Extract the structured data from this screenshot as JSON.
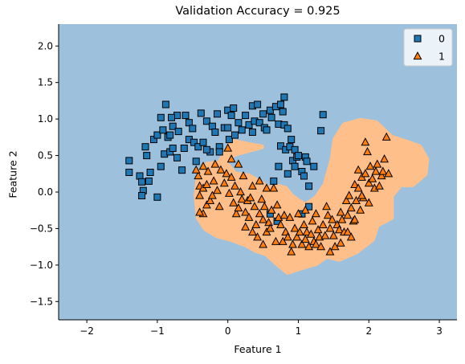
{
  "chart_data": {
    "type": "scatter",
    "title": "Validation Accuracy = 0.925",
    "xlabel": "Feature 1",
    "ylabel": "Feature 2",
    "xlim": [
      -2.4,
      3.25
    ],
    "ylim": [
      -1.75,
      2.3
    ],
    "xticks": [
      "-2",
      "-1",
      "0",
      "1",
      "2",
      "3"
    ],
    "yticks": [
      "-1.5",
      "-1.0",
      "-0.5",
      "0.0",
      "0.5",
      "1.0",
      "1.5",
      "2.0"
    ],
    "grid": false,
    "legend_position": "top-right",
    "background_region_color": "#9dc1dc",
    "class1_region_color": "#ffbf8a",
    "series": [
      {
        "name": "0",
        "marker": "square",
        "color": "#1f77b4",
        "points": [
          [
            -1.4,
            0.43
          ],
          [
            -1.4,
            0.27
          ],
          [
            -1.25,
            0.22
          ],
          [
            -1.22,
            0.14
          ],
          [
            -1.2,
            0.02
          ],
          [
            -1.22,
            -0.05
          ],
          [
            -1.12,
            0.15
          ],
          [
            -1.1,
            0.27
          ],
          [
            -1.15,
            0.5
          ],
          [
            -1.17,
            0.62
          ],
          [
            -1.0,
            -0.07
          ],
          [
            -0.95,
            0.35
          ],
          [
            -0.9,
            0.52
          ],
          [
            -0.82,
            0.55
          ],
          [
            -0.85,
            0.75
          ],
          [
            -0.82,
            0.78
          ],
          [
            -0.78,
            0.6
          ],
          [
            -0.72,
            0.47
          ],
          [
            -0.78,
            0.9
          ],
          [
            -0.72,
            1.05
          ],
          [
            -0.65,
            0.3
          ],
          [
            -0.6,
            1.05
          ],
          [
            -0.55,
            0.95
          ],
          [
            -0.5,
            0.87
          ],
          [
            -0.55,
            0.72
          ],
          [
            -0.48,
            0.68
          ],
          [
            -0.45,
            0.42
          ],
          [
            -0.42,
            0.62
          ],
          [
            -0.38,
            1.08
          ],
          [
            -0.3,
            0.97
          ],
          [
            -0.25,
            0.55
          ],
          [
            -0.22,
            0.9
          ],
          [
            -0.15,
            1.07
          ],
          [
            -0.12,
            0.62
          ],
          [
            -0.12,
            0.55
          ],
          [
            -1.05,
            0.72
          ],
          [
            -0.95,
            1.02
          ],
          [
            -0.88,
            1.2
          ],
          [
            -0.8,
            1.02
          ],
          [
            -1.0,
            0.78
          ],
          [
            -0.92,
            0.85
          ],
          [
            -0.7,
            0.83
          ],
          [
            -0.62,
            0.6
          ],
          [
            -0.35,
            0.68
          ],
          [
            -0.3,
            0.58
          ],
          [
            -0.18,
            0.82
          ],
          [
            -0.05,
            0.88
          ],
          [
            0.0,
            1.12
          ],
          [
            0.05,
            1.05
          ],
          [
            0.08,
            1.15
          ],
          [
            0.0,
            0.88
          ],
          [
            0.02,
            0.72
          ],
          [
            0.1,
            0.78
          ],
          [
            0.15,
            0.95
          ],
          [
            0.2,
            0.85
          ],
          [
            0.25,
            1.05
          ],
          [
            0.3,
            0.92
          ],
          [
            0.35,
            0.82
          ],
          [
            0.35,
            1.18
          ],
          [
            0.38,
            0.97
          ],
          [
            0.42,
            1.2
          ],
          [
            0.45,
            0.95
          ],
          [
            0.5,
            1.07
          ],
          [
            0.52,
            0.88
          ],
          [
            0.55,
            0.85
          ],
          [
            0.6,
            1.12
          ],
          [
            0.62,
            1.02
          ],
          [
            0.68,
            1.17
          ],
          [
            0.72,
            0.93
          ],
          [
            0.75,
            1.2
          ],
          [
            0.78,
            1.1
          ],
          [
            0.8,
            0.92
          ],
          [
            0.8,
            1.3
          ],
          [
            0.75,
            0.63
          ],
          [
            0.82,
            0.58
          ],
          [
            0.85,
            0.87
          ],
          [
            0.88,
            0.62
          ],
          [
            0.9,
            0.72
          ],
          [
            0.92,
            0.43
          ],
          [
            0.95,
            0.58
          ],
          [
            0.95,
            0.35
          ],
          [
            0.98,
            0.48
          ],
          [
            1.05,
            0.28
          ],
          [
            1.08,
            0.22
          ],
          [
            1.1,
            0.48
          ],
          [
            1.15,
            0.08
          ],
          [
            1.12,
            0.42
          ],
          [
            1.22,
            0.35
          ],
          [
            1.32,
            0.84
          ],
          [
            1.35,
            1.06
          ],
          [
            1.0,
            0.5
          ],
          [
            0.85,
            0.25
          ],
          [
            0.72,
            0.35
          ],
          [
            0.65,
            0.15
          ],
          [
            1.05,
            -0.3
          ],
          [
            1.15,
            -0.2
          ],
          [
            0.6,
            -0.3
          ],
          [
            0.7,
            -0.4
          ]
        ]
      },
      {
        "name": "1",
        "marker": "triangle",
        "color": "#ff7f0e",
        "points": [
          [
            -0.4,
            -0.05
          ],
          [
            -0.35,
            -0.3
          ],
          [
            -0.4,
            -0.28
          ],
          [
            -0.3,
            -0.18
          ],
          [
            -0.25,
            -0.12
          ],
          [
            -0.28,
            0.28
          ],
          [
            -0.35,
            0.35
          ],
          [
            -0.4,
            0.08
          ],
          [
            -0.42,
            0.22
          ],
          [
            -0.35,
            0.05
          ],
          [
            -0.22,
            -0.05
          ],
          [
            -0.2,
            0.15
          ],
          [
            -0.18,
            0.38
          ],
          [
            -0.15,
            0.02
          ],
          [
            -0.12,
            -0.2
          ],
          [
            -0.1,
            0.3
          ],
          [
            -0.05,
            0.12
          ],
          [
            -0.02,
            0.25
          ],
          [
            0.0,
            0.6
          ],
          [
            0.02,
            -0.02
          ],
          [
            0.05,
            0.2
          ],
          [
            0.08,
            -0.15
          ],
          [
            0.1,
            0.08
          ],
          [
            0.12,
            -0.3
          ],
          [
            0.15,
            -0.22
          ],
          [
            0.18,
            0.0
          ],
          [
            0.2,
            -0.1
          ],
          [
            0.22,
            0.22
          ],
          [
            0.25,
            -0.28
          ],
          [
            0.28,
            -0.12
          ],
          [
            0.3,
            -0.35
          ],
          [
            0.32,
            -0.08
          ],
          [
            0.35,
            0.08
          ],
          [
            0.38,
            -0.2
          ],
          [
            0.4,
            -0.45
          ],
          [
            0.42,
            -0.62
          ],
          [
            0.45,
            -0.3
          ],
          [
            0.48,
            -0.1
          ],
          [
            0.5,
            -0.38
          ],
          [
            0.52,
            -0.2
          ],
          [
            0.55,
            -0.55
          ],
          [
            0.58,
            -0.42
          ],
          [
            0.6,
            -0.5
          ],
          [
            0.62,
            -0.25
          ],
          [
            0.65,
            0.05
          ],
          [
            0.68,
            -0.68
          ],
          [
            0.7,
            -0.18
          ],
          [
            0.72,
            -0.35
          ],
          [
            0.75,
            -0.45
          ],
          [
            0.78,
            -0.68
          ],
          [
            0.8,
            -0.32
          ],
          [
            0.82,
            -0.55
          ],
          [
            0.85,
            -0.62
          ],
          [
            0.88,
            -0.35
          ],
          [
            0.9,
            -0.82
          ],
          [
            0.92,
            -0.72
          ],
          [
            0.95,
            -0.5
          ],
          [
            0.98,
            -0.62
          ],
          [
            1.0,
            -0.3
          ],
          [
            1.02,
            -0.55
          ],
          [
            1.05,
            -0.72
          ],
          [
            1.08,
            -0.45
          ],
          [
            1.1,
            -0.65
          ],
          [
            1.12,
            -0.55
          ],
          [
            1.15,
            -0.75
          ],
          [
            1.18,
            -0.58
          ],
          [
            1.2,
            -0.4
          ],
          [
            1.22,
            -0.68
          ],
          [
            1.25,
            -0.72
          ],
          [
            1.28,
            -0.52
          ],
          [
            1.3,
            -0.62
          ],
          [
            1.32,
            -0.75
          ],
          [
            1.35,
            -0.45
          ],
          [
            1.38,
            -0.6
          ],
          [
            1.4,
            -0.2
          ],
          [
            1.42,
            -0.32
          ],
          [
            1.45,
            -0.5
          ],
          [
            1.48,
            -0.38
          ],
          [
            1.5,
            -0.6
          ],
          [
            1.52,
            -0.75
          ],
          [
            1.55,
            -0.45
          ],
          [
            1.58,
            -0.52
          ],
          [
            1.6,
            -0.28
          ],
          [
            1.62,
            -0.38
          ],
          [
            1.65,
            -0.55
          ],
          [
            1.68,
            -0.12
          ],
          [
            1.7,
            -0.32
          ],
          [
            1.72,
            -0.05
          ],
          [
            1.75,
            -0.22
          ],
          [
            1.78,
            -0.4
          ],
          [
            1.8,
            0.1
          ],
          [
            1.82,
            -0.12
          ],
          [
            1.85,
            0.05
          ],
          [
            1.88,
            -0.25
          ],
          [
            1.9,
            0.2
          ],
          [
            1.92,
            -0.08
          ],
          [
            1.95,
            0.25
          ],
          [
            1.98,
            0.55
          ],
          [
            2.0,
            0.12
          ],
          [
            2.02,
            0.35
          ],
          [
            2.05,
            0.18
          ],
          [
            2.08,
            0.05
          ],
          [
            2.1,
            0.28
          ],
          [
            2.12,
            0.38
          ],
          [
            2.15,
            0.08
          ],
          [
            2.18,
            0.22
          ],
          [
            2.2,
            0.28
          ],
          [
            2.22,
            0.45
          ],
          [
            2.28,
            0.25
          ],
          [
            2.25,
            0.75
          ],
          [
            1.95,
            0.68
          ],
          [
            1.85,
            0.3
          ],
          [
            1.9,
            -0.05
          ],
          [
            1.8,
            -0.38
          ],
          [
            1.7,
            -0.55
          ],
          [
            2.0,
            -0.15
          ],
          [
            -0.45,
            0.3
          ],
          [
            -0.3,
            0.1
          ],
          [
            0.05,
            0.45
          ],
          [
            0.15,
            0.38
          ],
          [
            0.45,
            0.15
          ],
          [
            0.55,
            0.05
          ],
          [
            0.35,
            -0.55
          ],
          [
            0.25,
            -0.48
          ],
          [
            0.5,
            -0.72
          ],
          [
            1.1,
            -0.25
          ],
          [
            1.25,
            -0.3
          ],
          [
            1.45,
            -0.82
          ],
          [
            1.6,
            -0.7
          ],
          [
            1.75,
            -0.62
          ]
        ]
      }
    ]
  }
}
